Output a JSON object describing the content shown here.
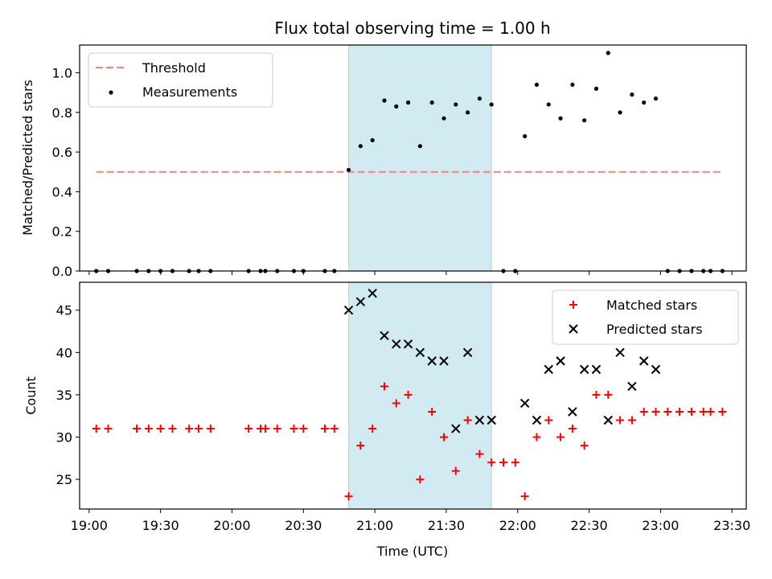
{
  "chart_data": [
    {
      "type": "scatter",
      "title": "Flux total observing time = 1.00 h",
      "xlabel": "",
      "ylabel": "Matched/Predicted stars",
      "xlim": [
        "18:56",
        "23:36"
      ],
      "ylim": [
        0,
        1.14
      ],
      "yticks": [
        "0.0",
        "0.2",
        "0.4",
        "0.6",
        "0.8",
        "1.0"
      ],
      "shaded_interval": [
        "20:49",
        "21:49"
      ],
      "shade_color": "#add8e6",
      "legend_position": "top-left",
      "series": [
        {
          "name": "Threshold",
          "style": "dashed-line",
          "color": "#ff7f7f",
          "x": [
            "19:03",
            "23:26"
          ],
          "y": [
            0.5,
            0.5
          ]
        },
        {
          "name": "Measurements",
          "style": "dot",
          "color": "#000000",
          "x": [
            "19:03",
            "19:08",
            "19:20",
            "19:25",
            "19:30",
            "19:35",
            "19:42",
            "19:46",
            "19:51",
            "20:07",
            "20:12",
            "20:14",
            "20:19",
            "20:26",
            "20:30",
            "20:39",
            "20:43",
            "20:49",
            "20:54",
            "20:59",
            "21:04",
            "21:09",
            "21:14",
            "21:19",
            "21:24",
            "21:29",
            "21:34",
            "21:39",
            "21:44",
            "21:49",
            "21:54",
            "21:59",
            "22:03",
            "22:08",
            "22:13",
            "22:18",
            "22:23",
            "22:28",
            "22:33",
            "22:38",
            "22:43",
            "22:48",
            "22:53",
            "22:58",
            "23:03",
            "23:08",
            "23:13",
            "23:18",
            "23:21",
            "23:26"
          ],
          "y": [
            0,
            0,
            0,
            0,
            0,
            0,
            0,
            0,
            0,
            0,
            0,
            0,
            0,
            0,
            0,
            0,
            0,
            0.51,
            0.63,
            0.66,
            0.86,
            0.83,
            0.85,
            0.63,
            0.85,
            0.77,
            0.84,
            0.8,
            0.87,
            0.84,
            0,
            0,
            0.68,
            0.94,
            0.84,
            0.77,
            0.94,
            0.76,
            0.92,
            1.1,
            0.8,
            0.89,
            0.85,
            0.87,
            0,
            0,
            0,
            0,
            0,
            0
          ]
        }
      ]
    },
    {
      "type": "scatter",
      "title": "",
      "xlabel": "Time (UTC)",
      "ylabel": "Count",
      "xlim": [
        "18:56",
        "23:36"
      ],
      "ylim": [
        21.5,
        48.3
      ],
      "yticks": [
        "25",
        "30",
        "35",
        "40",
        "45"
      ],
      "xticks": [
        "19:00",
        "19:30",
        "20:00",
        "20:30",
        "21:00",
        "21:30",
        "22:00",
        "22:30",
        "23:00",
        "23:30"
      ],
      "shaded_interval": [
        "20:49",
        "21:49"
      ],
      "shade_color": "#add8e6",
      "legend_position": "top-right",
      "series": [
        {
          "name": "Matched stars",
          "marker": "plus",
          "color": "#ff0000",
          "x": [
            "19:03",
            "19:08",
            "19:20",
            "19:25",
            "19:30",
            "19:35",
            "19:42",
            "19:46",
            "19:51",
            "20:07",
            "20:12",
            "20:14",
            "20:19",
            "20:26",
            "20:30",
            "20:39",
            "20:43",
            "20:49",
            "20:54",
            "20:59",
            "21:04",
            "21:09",
            "21:14",
            "21:19",
            "21:24",
            "21:29",
            "21:34",
            "21:39",
            "21:44",
            "21:49",
            "21:54",
            "21:59",
            "22:03",
            "22:08",
            "22:13",
            "22:18",
            "22:23",
            "22:28",
            "22:33",
            "22:38",
            "22:43",
            "22:48",
            "22:53",
            "22:58",
            "23:03",
            "23:08",
            "23:13",
            "23:18",
            "23:21",
            "23:26"
          ],
          "y": [
            31,
            31,
            31,
            31,
            31,
            31,
            31,
            31,
            31,
            31,
            31,
            31,
            31,
            31,
            31,
            31,
            31,
            23,
            29,
            31,
            36,
            34,
            35,
            25,
            33,
            30,
            26,
            32,
            28,
            27,
            27,
            27,
            23,
            30,
            32,
            30,
            31,
            29,
            35,
            35,
            32,
            32,
            33,
            33,
            33,
            33,
            33,
            33,
            33,
            33
          ]
        },
        {
          "name": "Predicted stars",
          "marker": "x",
          "color": "#000000",
          "x": [
            "20:49",
            "20:54",
            "20:59",
            "21:04",
            "21:09",
            "21:14",
            "21:19",
            "21:24",
            "21:29",
            "21:34",
            "21:39",
            "21:44",
            "21:49",
            "22:03",
            "22:08",
            "22:13",
            "22:18",
            "22:23",
            "22:28",
            "22:33",
            "22:38",
            "22:43",
            "22:48",
            "22:53",
            "22:58"
          ],
          "y": [
            45,
            46,
            47,
            42,
            41,
            41,
            40,
            39,
            39,
            31,
            40,
            32,
            32,
            34,
            32,
            38,
            39,
            33,
            38,
            38,
            32,
            40,
            36,
            39,
            38
          ]
        }
      ]
    }
  ]
}
